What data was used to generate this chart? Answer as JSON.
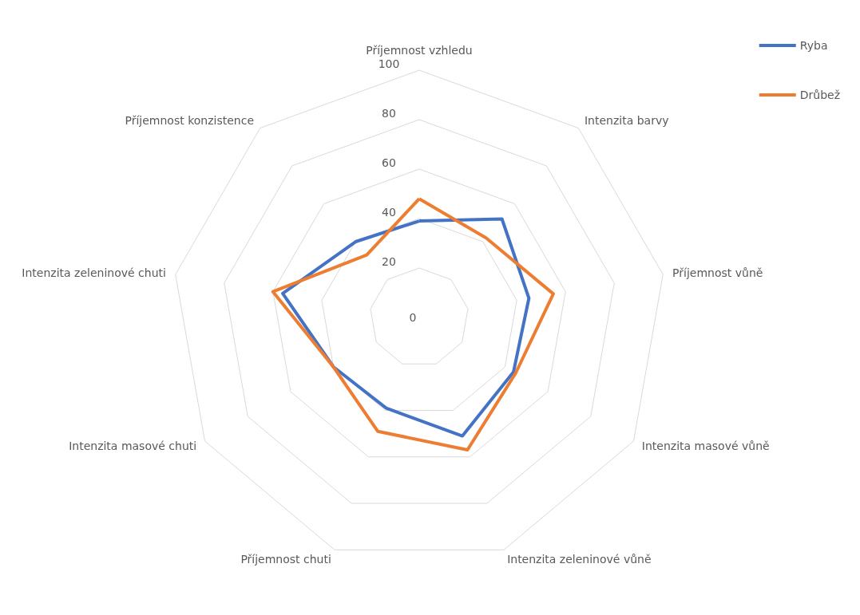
{
  "chart_data": {
    "type": "radar",
    "categories": [
      "Příjemnost vzhledu",
      "Intenzita barvy",
      "Příjemnost vůně",
      "Intenzita masové vůně",
      "Intenzita zeleninové vůně",
      "Příjemnost chuti",
      "Intenzita masové chuti",
      "Intenzita zeleninové chuti",
      "Příjemnost konzistence"
    ],
    "series": [
      {
        "name": "Ryba",
        "color": "#4472c4",
        "values": [
          39,
          52,
          45,
          44,
          51,
          39,
          40,
          56,
          40
        ]
      },
      {
        "name": "Drůbež",
        "color": "#ed7d31",
        "values": [
          48,
          42,
          55,
          45,
          57,
          49,
          40,
          60,
          33
        ]
      }
    ],
    "ylim": [
      0,
      100
    ],
    "yticks": [
      0,
      20,
      40,
      60,
      80,
      100
    ],
    "grid": true,
    "legend": "top right",
    "marker": "none"
  }
}
